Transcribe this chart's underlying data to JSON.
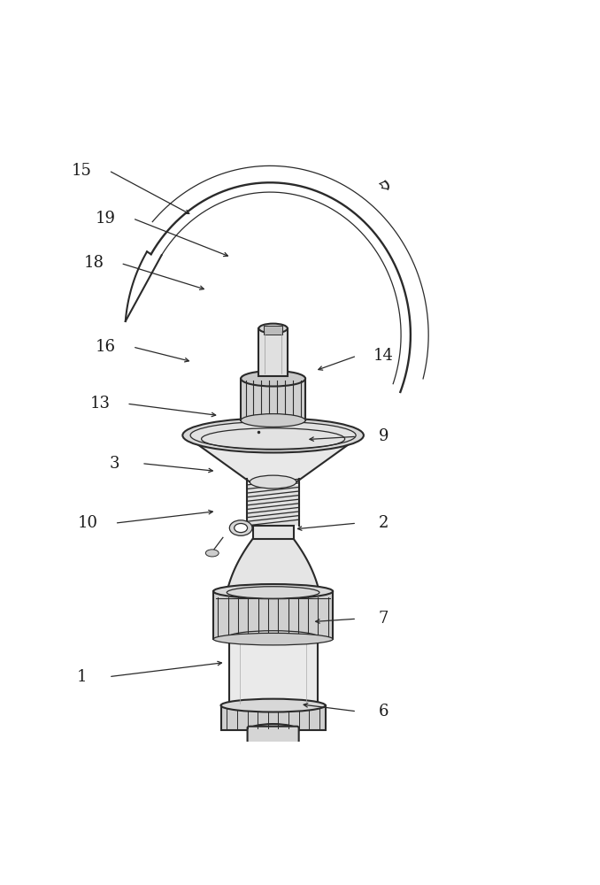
{
  "bg_color": "#ffffff",
  "line_color": "#2a2a2a",
  "label_color": "#1a1a1a",
  "figsize": [
    6.78,
    10.0
  ],
  "dpi": 100,
  "labels": {
    "15": {
      "lpos": [
        0.135,
        0.955
      ],
      "apos": [
        0.32,
        0.88
      ]
    },
    "19": {
      "lpos": [
        0.175,
        0.875
      ],
      "apos": [
        0.385,
        0.81
      ]
    },
    "18": {
      "lpos": [
        0.155,
        0.8
      ],
      "apos": [
        0.345,
        0.755
      ]
    },
    "16": {
      "lpos": [
        0.175,
        0.66
      ],
      "apos": [
        0.32,
        0.635
      ]
    },
    "14": {
      "lpos": [
        0.64,
        0.645
      ],
      "apos": [
        0.525,
        0.62
      ]
    },
    "13": {
      "lpos": [
        0.165,
        0.565
      ],
      "apos": [
        0.365,
        0.545
      ]
    },
    "9": {
      "lpos": [
        0.64,
        0.51
      ],
      "apos": [
        0.51,
        0.505
      ]
    },
    "3": {
      "lpos": [
        0.19,
        0.465
      ],
      "apos": [
        0.36,
        0.452
      ]
    },
    "10": {
      "lpos": [
        0.145,
        0.365
      ],
      "apos": [
        0.36,
        0.385
      ]
    },
    "2": {
      "lpos": [
        0.64,
        0.365
      ],
      "apos": [
        0.49,
        0.355
      ]
    },
    "7": {
      "lpos": [
        0.64,
        0.205
      ],
      "apos": [
        0.52,
        0.2
      ]
    },
    "1": {
      "lpos": [
        0.135,
        0.108
      ],
      "apos": [
        0.375,
        0.132
      ]
    },
    "6": {
      "lpos": [
        0.64,
        0.05
      ],
      "apos": [
        0.5,
        0.062
      ]
    }
  }
}
